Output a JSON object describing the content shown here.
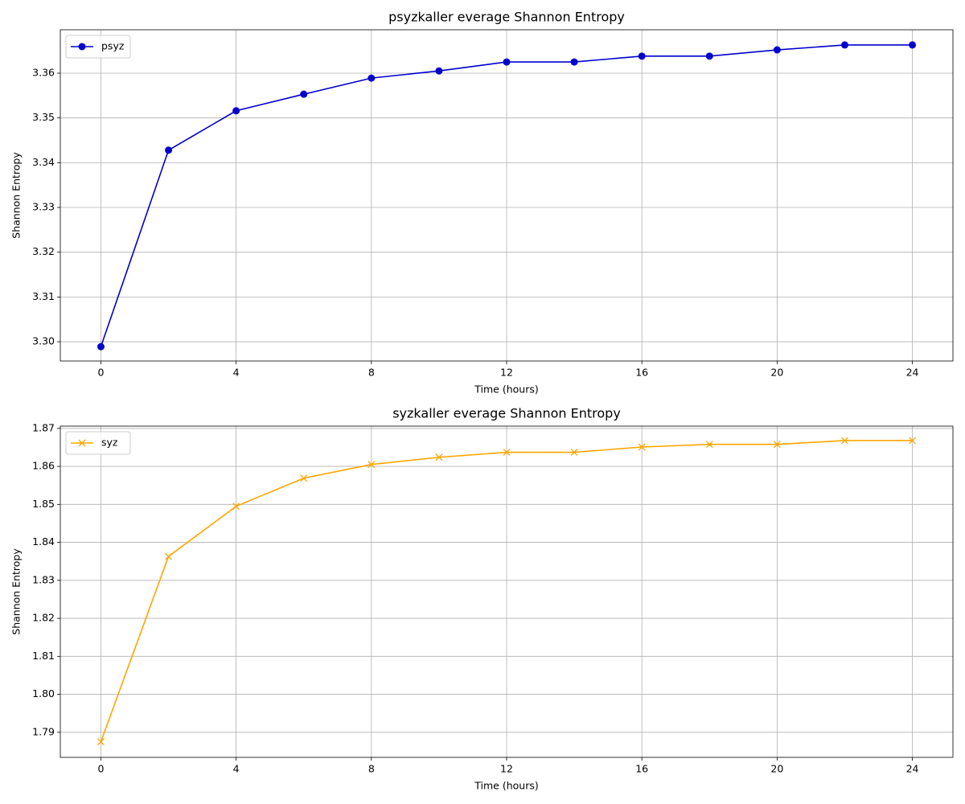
{
  "chart_data": [
    {
      "type": "line",
      "title": "psyzkaller everage Shannon Entropy",
      "xlabel": "Time (hours)",
      "ylabel": "Shannon Entropy",
      "x": [
        0,
        2,
        4,
        6,
        8,
        10,
        12,
        14,
        16,
        18,
        20,
        22,
        24
      ],
      "series": [
        {
          "name": "psyz",
          "color": "#0000cd",
          "marker": "o",
          "values": [
            3.2989,
            3.3428,
            3.3516,
            3.3553,
            3.3589,
            3.3605,
            3.3625,
            3.3625,
            3.3638,
            3.3638,
            3.3652,
            3.3663,
            3.3663
          ]
        }
      ],
      "xlim": [
        -1.2,
        25.2
      ],
      "xticks": [
        0,
        4,
        8,
        12,
        16,
        20,
        24
      ],
      "ylim": [
        3.2957,
        3.3697
      ],
      "yticks": [
        {
          "value": 3.3,
          "label": "3.30"
        },
        3.31,
        3.32,
        3.33,
        3.34,
        3.35,
        3.36
      ],
      "grid": true,
      "legend": "upper-left"
    },
    {
      "type": "line",
      "title": "syzkaller everage Shannon Entropy",
      "xlabel": "Time (hours)",
      "ylabel": "Shannon Entropy",
      "x": [
        0,
        2,
        4,
        6,
        8,
        10,
        12,
        14,
        16,
        18,
        20,
        22,
        24
      ],
      "series": [
        {
          "name": "syz",
          "color": "#ffa500",
          "marker": "x",
          "values": [
            1.7875,
            1.8363,
            1.8495,
            1.8569,
            1.8605,
            1.8624,
            1.8637,
            1.8637,
            1.8651,
            1.8658,
            1.8658,
            1.8668,
            1.8668
          ]
        }
      ],
      "xlim": [
        -1.2,
        25.2
      ],
      "xticks": [
        0,
        4,
        8,
        12,
        16,
        20,
        24
      ],
      "ylim": [
        1.7834,
        1.8706
      ],
      "yticks": [
        1.79,
        {
          "value": 1.8,
          "label": "1.80"
        },
        1.81,
        1.82,
        1.83,
        1.84,
        1.85,
        1.86,
        1.87
      ],
      "grid": true,
      "legend": "upper-left"
    }
  ]
}
